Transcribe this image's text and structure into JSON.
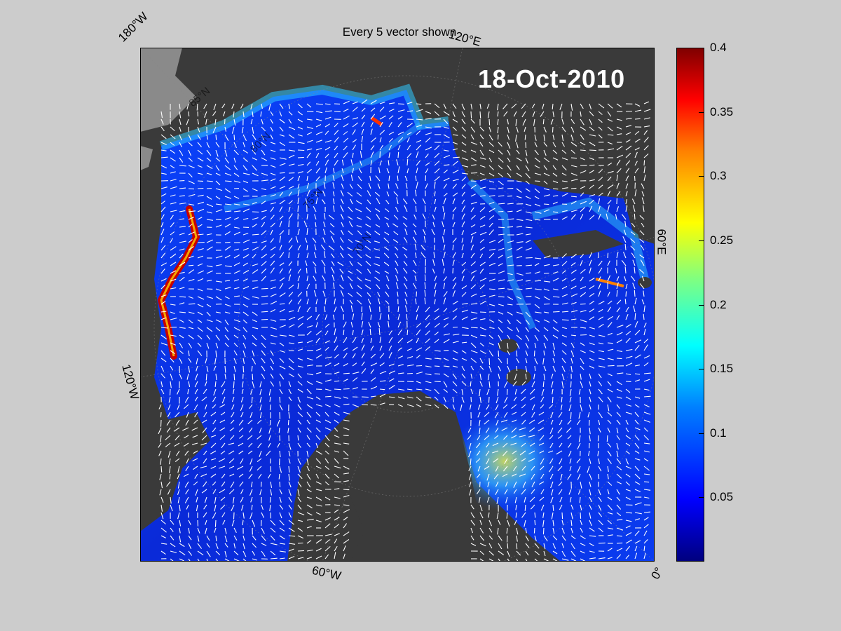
{
  "title": "Every 5 vector shown",
  "date": "18-Oct-2010",
  "lon_labels": {
    "w180": "180°W",
    "e120": "120°E",
    "e60": "60°E",
    "w120": "120°W",
    "w60": "60°W",
    "zero": "0°"
  },
  "lat_labels": {
    "n85": "85°N",
    "n80": "80°N",
    "n75": "75°N",
    "n70": "70°N"
  },
  "colorbar": {
    "min": 0,
    "max": 0.4,
    "ticks": [
      "0.4",
      "0.35",
      "0.3",
      "0.25",
      "0.2",
      "0.15",
      "0.1",
      "0.05"
    ],
    "tick_values": [
      0.4,
      0.35,
      0.3,
      0.25,
      0.2,
      0.15,
      0.1,
      0.05
    ]
  },
  "colors": {
    "land": "#3a3a3a",
    "land_unused": "#8a8a8a",
    "ice_low": "#0000ff",
    "ice_mid": "#00bfff",
    "ice_high": "#7f0000",
    "vector": "#ffffff"
  }
}
